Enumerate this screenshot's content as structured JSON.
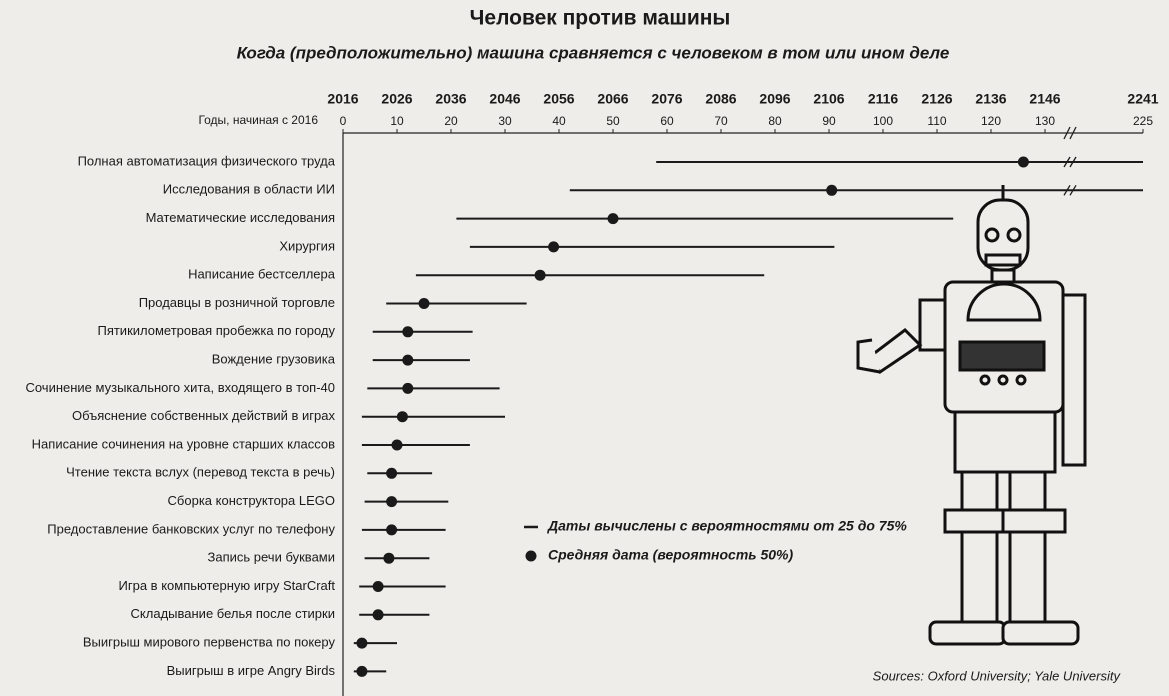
{
  "chart_data": {
    "type": "dot-range",
    "title": "Человек против машины",
    "subtitle": "Когда (предположительно) машина сравняется с человеком в том или ином деле",
    "x_label": "Годы, начиная с 2016",
    "categories": [
      "Полная автоматизация физического труда",
      "Исследования в области ИИ",
      "Математические исследования",
      "Хирургия",
      "Написание бестселлера",
      "Продавцы в розничной торговле",
      "Пятикилометровая пробежка по городу",
      "Вождение грузовика",
      "Сочинение музыкального хита, входящего в топ-40",
      "Объяснение собственных действий в играх",
      "Написание сочинения на уровне старших классов",
      "Чтение текста вслух (перевод текста в речь)",
      "Сборка конструктора LEGO",
      "Предоставление банковских услуг по телефону",
      "Запись речи буквами",
      "Игра в компьютерную игру StarCraft",
      "Складывание белья после стирки",
      "Выигрыш мирового первенства по покеру",
      "Выигрыш в игре Angry Birds"
    ],
    "series": [
      {
        "name": "Даты вычислены с вероятностями от 25 до 75%",
        "color": "#1a1a1a",
        "low": [
          58,
          42,
          21,
          23.5,
          13.5,
          8,
          5.5,
          5.5,
          4.5,
          3.5,
          3.5,
          4.5,
          4,
          3.5,
          4,
          3,
          3,
          2,
          2
        ],
        "high": [
          225,
          225,
          113,
          91,
          78,
          34,
          24,
          23.5,
          29,
          30,
          23.5,
          16.5,
          19.5,
          19,
          16,
          19,
          16,
          10,
          8
        ]
      },
      {
        "name": "Средняя дата (вероятность 50%)",
        "color": "#1a1a1a",
        "values": [
          126,
          90.5,
          50,
          39,
          36.5,
          15,
          12,
          12,
          12,
          11,
          10,
          9,
          9,
          9,
          8.5,
          6.5,
          6.5,
          3.5,
          3.5
        ]
      }
    ],
    "xlim": [
      0,
      225
    ],
    "xticks": [
      0,
      10,
      20,
      30,
      40,
      50,
      60,
      70,
      80,
      90,
      100,
      110,
      120,
      130,
      225
    ],
    "x2lim": [
      2016,
      2241
    ],
    "x2ticks": [
      2016,
      2026,
      2036,
      2046,
      2056,
      2066,
      2076,
      2086,
      2096,
      2106,
      2116,
      2126,
      2136,
      2146,
      2241
    ],
    "source": "Sources: Oxford University; Yale University"
  }
}
